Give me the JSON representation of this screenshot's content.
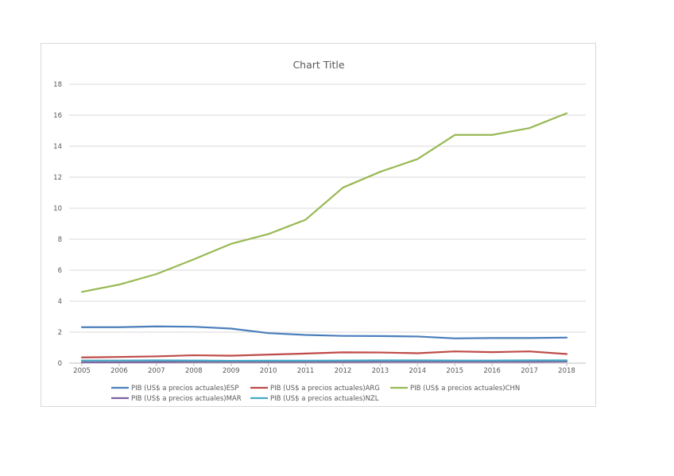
{
  "chart_data": {
    "type": "line",
    "title": "Chart Title",
    "xlabel": "",
    "ylabel": "",
    "x": [
      "2005",
      "2006",
      "2007",
      "2008",
      "2009",
      "2010",
      "2011",
      "2012",
      "2013",
      "2014",
      "2015",
      "2016",
      "2017",
      "2018"
    ],
    "ylim": [
      0,
      18
    ],
    "yticks": [
      0,
      2,
      4,
      6,
      8,
      10,
      12,
      14,
      16,
      18
    ],
    "grid": true,
    "legend": "bottom",
    "series": [
      {
        "name": "PIB (US$ a precios actuales)ESP",
        "color": "#4a7ebb",
        "values": [
          2.32,
          2.32,
          2.37,
          2.35,
          2.23,
          1.94,
          1.82,
          1.76,
          1.75,
          1.72,
          1.6,
          1.62,
          1.62,
          1.65
        ]
      },
      {
        "name": "PIB (US$ a precios actuales)ARG",
        "color": "#be4b48",
        "values": [
          0.37,
          0.4,
          0.44,
          0.51,
          0.48,
          0.55,
          0.62,
          0.7,
          0.69,
          0.64,
          0.76,
          0.71,
          0.76,
          0.59
        ]
      },
      {
        "name": "PIB (US$ a precios actuales)CHN",
        "color": "#98b954",
        "values": [
          4.6,
          5.07,
          5.75,
          6.7,
          7.7,
          8.33,
          9.26,
          11.33,
          12.35,
          13.17,
          14.73,
          14.73,
          15.17,
          16.13
        ]
      },
      {
        "name": "PIB (US$ a precios actuales)MAR",
        "color": "#7d60a0",
        "values": [
          0.06,
          0.06,
          0.07,
          0.08,
          0.08,
          0.08,
          0.08,
          0.08,
          0.09,
          0.09,
          0.09,
          0.09,
          0.09,
          0.1
        ]
      },
      {
        "name": "PIB (US$ a precios actuales)NZL",
        "color": "#46aac5",
        "values": [
          0.17,
          0.17,
          0.18,
          0.17,
          0.15,
          0.16,
          0.16,
          0.17,
          0.18,
          0.18,
          0.17,
          0.17,
          0.18,
          0.18
        ]
      }
    ]
  }
}
